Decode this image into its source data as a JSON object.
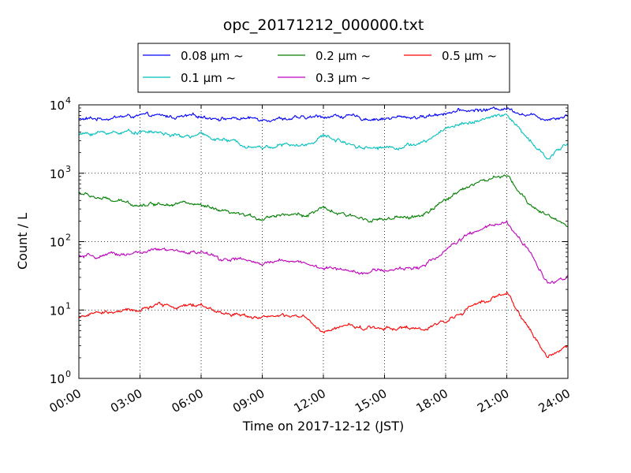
{
  "chart_data": {
    "type": "line",
    "title": "opc_20171212_000000.txt",
    "xlabel": "Time on 2017-12-12 (JST)",
    "ylabel": "Count / L",
    "yscale": "log",
    "ylim": [
      1,
      10000
    ],
    "xlim": [
      "00:00",
      "24:00"
    ],
    "grid": true,
    "legend_position": "top-center",
    "x_tick_labels": [
      "00:00",
      "03:00",
      "06:00",
      "09:00",
      "12:00",
      "15:00",
      "18:00",
      "21:00",
      "24:00"
    ],
    "y_tick_labels": [
      {
        "base": "10",
        "exp": "0"
      },
      {
        "base": "10",
        "exp": "1"
      },
      {
        "base": "10",
        "exp": "2"
      },
      {
        "base": "10",
        "exp": "3"
      },
      {
        "base": "10",
        "exp": "4"
      }
    ],
    "x_hours": [
      0,
      1,
      2,
      3,
      4,
      5,
      6,
      7,
      8,
      9,
      10,
      11,
      12,
      13,
      14,
      15,
      16,
      17,
      18,
      19,
      20,
      21,
      22,
      23,
      24
    ],
    "series": [
      {
        "name": "0.08 μm ~",
        "color": "#0000ff",
        "values": [
          6100,
          6300,
          6700,
          6900,
          6800,
          6600,
          6800,
          6400,
          6300,
          6300,
          6400,
          6300,
          6800,
          6900,
          6300,
          6300,
          6600,
          6700,
          7800,
          8200,
          8500,
          9000,
          7200,
          6300,
          7100
        ]
      },
      {
        "name": "0.1 μm ~",
        "color": "#00bfbf",
        "values": [
          3700,
          3900,
          4000,
          4100,
          3900,
          3400,
          3600,
          3100,
          2700,
          2400,
          2600,
          2500,
          3500,
          2900,
          2400,
          2400,
          2500,
          2800,
          4600,
          5500,
          6200,
          7300,
          3200,
          1600,
          2800
        ]
      },
      {
        "name": "0.2 μm ~",
        "color": "#008000",
        "values": [
          520,
          430,
          380,
          350,
          360,
          380,
          330,
          270,
          240,
          220,
          260,
          240,
          300,
          240,
          220,
          210,
          220,
          250,
          400,
          650,
          800,
          900,
          380,
          240,
          170
        ]
      },
      {
        "name": "0.3 μm ~",
        "color": "#bf00bf",
        "values": [
          60,
          60,
          65,
          70,
          75,
          70,
          70,
          55,
          55,
          45,
          55,
          50,
          40,
          40,
          36,
          38,
          40,
          45,
          75,
          120,
          160,
          190,
          80,
          25,
          32
        ]
      },
      {
        "name": "0.5 μm ~",
        "color": "#ff0000",
        "values": [
          8,
          9,
          9.5,
          10,
          12,
          11,
          12,
          9,
          8.5,
          8,
          8,
          8,
          4.5,
          6,
          5.5,
          5.5,
          5.5,
          5,
          7,
          10,
          14,
          18,
          6,
          2,
          3
        ]
      }
    ]
  }
}
